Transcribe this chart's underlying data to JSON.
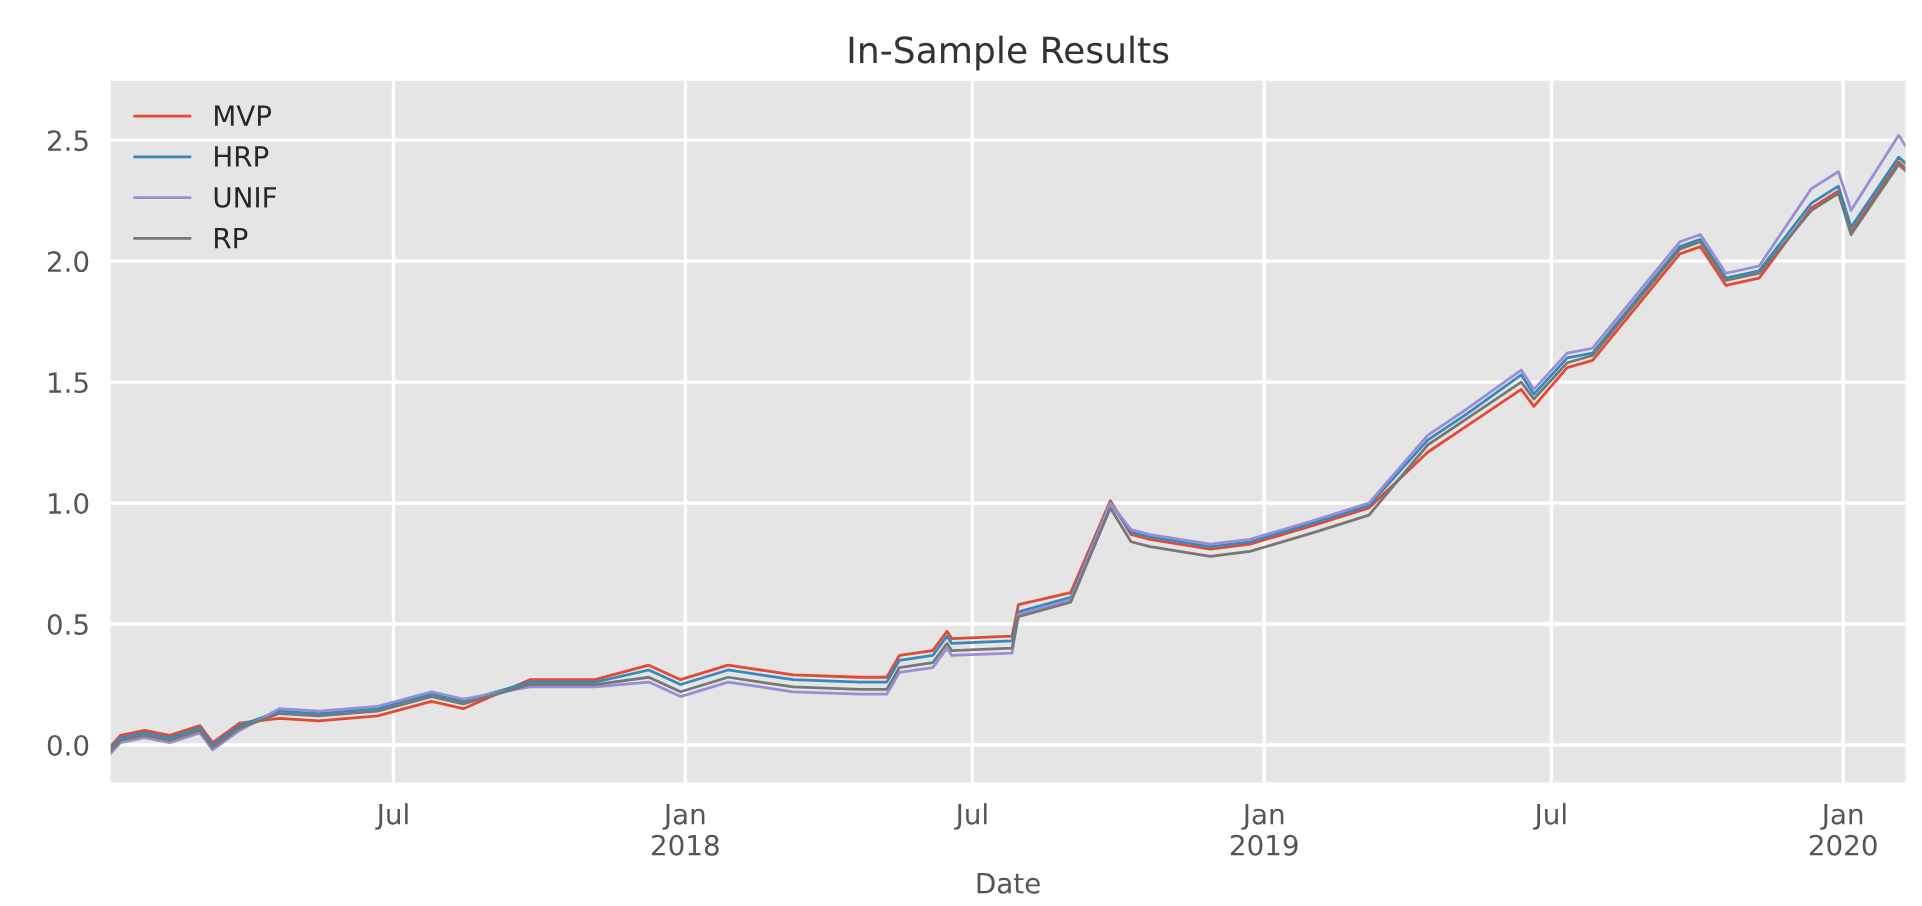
{
  "chart_data": {
    "type": "line",
    "title": "In-Sample Results",
    "xlabel": "Date",
    "x": [
      "2017-01-03",
      "2017-01-10",
      "2017-01-25",
      "2017-02-10",
      "2017-03-01",
      "2017-03-09",
      "2017-03-26",
      "2017-04-20",
      "2017-05-15",
      "2017-06-21",
      "2017-07-25",
      "2017-08-14",
      "2017-09-25",
      "2017-11-05",
      "2017-12-09",
      "2017-12-29",
      "2018-01-28",
      "2018-03-10",
      "2018-04-21",
      "2018-05-08",
      "2018-05-16",
      "2018-06-06",
      "2018-06-15",
      "2018-06-18",
      "2018-07-26",
      "2018-07-30",
      "2018-09-01",
      "2018-09-26",
      "2018-10-09",
      "2018-10-21",
      "2018-11-28",
      "2018-12-23",
      "2019-02-02",
      "2019-03-08",
      "2019-04-14",
      "2019-05-09",
      "2019-06-12",
      "2019-06-20",
      "2019-07-11",
      "2019-07-27",
      "2019-09-20",
      "2019-10-03",
      "2019-10-19",
      "2019-11-09",
      "2019-12-12",
      "2019-12-29",
      "2020-01-06",
      "2020-02-05",
      "2020-02-10"
    ],
    "series": [
      {
        "name": "MVP",
        "color": "#e24a33",
        "values": [
          -0.01,
          0.04,
          0.06,
          0.04,
          0.08,
          0.01,
          0.09,
          0.11,
          0.1,
          0.12,
          0.18,
          0.15,
          0.27,
          0.27,
          0.33,
          0.27,
          0.33,
          0.29,
          0.28,
          0.28,
          0.37,
          0.39,
          0.47,
          0.44,
          0.45,
          0.58,
          0.63,
          1.01,
          0.87,
          0.85,
          0.81,
          0.83,
          0.91,
          0.98,
          1.21,
          1.32,
          1.47,
          1.4,
          1.56,
          1.59,
          2.03,
          2.06,
          1.9,
          1.93,
          2.22,
          2.29,
          2.12,
          2.41,
          2.38
        ]
      },
      {
        "name": "HRP",
        "color": "#348abd",
        "values": [
          -0.02,
          0.03,
          0.05,
          0.03,
          0.07,
          0.0,
          0.08,
          0.14,
          0.13,
          0.15,
          0.21,
          0.18,
          0.26,
          0.26,
          0.31,
          0.25,
          0.31,
          0.27,
          0.26,
          0.26,
          0.35,
          0.37,
          0.45,
          0.42,
          0.43,
          0.55,
          0.61,
          1.0,
          0.88,
          0.86,
          0.82,
          0.84,
          0.92,
          0.99,
          1.26,
          1.37,
          1.53,
          1.45,
          1.6,
          1.62,
          2.06,
          2.09,
          1.93,
          1.96,
          2.24,
          2.31,
          2.14,
          2.43,
          2.4
        ]
      },
      {
        "name": "UNIF",
        "color": "#988ed5",
        "values": [
          -0.04,
          0.01,
          0.03,
          0.01,
          0.05,
          -0.02,
          0.06,
          0.15,
          0.14,
          0.16,
          0.22,
          0.19,
          0.24,
          0.24,
          0.26,
          0.2,
          0.26,
          0.22,
          0.21,
          0.21,
          0.3,
          0.32,
          0.4,
          0.37,
          0.38,
          0.54,
          0.6,
          1.0,
          0.89,
          0.87,
          0.83,
          0.85,
          0.93,
          1.0,
          1.28,
          1.39,
          1.55,
          1.47,
          1.62,
          1.64,
          2.08,
          2.11,
          1.95,
          1.98,
          2.3,
          2.37,
          2.21,
          2.52,
          2.47
        ]
      },
      {
        "name": "RP",
        "color": "#777777",
        "values": [
          -0.03,
          0.02,
          0.04,
          0.02,
          0.06,
          -0.01,
          0.07,
          0.13,
          0.12,
          0.14,
          0.2,
          0.17,
          0.25,
          0.25,
          0.28,
          0.22,
          0.28,
          0.24,
          0.23,
          0.23,
          0.32,
          0.34,
          0.42,
          0.39,
          0.4,
          0.53,
          0.59,
          0.98,
          0.84,
          0.82,
          0.78,
          0.8,
          0.88,
          0.95,
          1.24,
          1.35,
          1.5,
          1.43,
          1.58,
          1.61,
          2.05,
          2.08,
          1.92,
          1.95,
          2.21,
          2.28,
          2.11,
          2.4,
          2.37
        ]
      }
    ],
    "xlim": [
      "2017-01-03",
      "2020-02-10"
    ],
    "xticks": [
      {
        "value": "2017-07-01",
        "label": "Jul"
      },
      {
        "value": "2018-01-01",
        "label": "Jan\n2018"
      },
      {
        "value": "2018-07-01",
        "label": "Jul"
      },
      {
        "value": "2019-01-01",
        "label": "Jan\n2019"
      },
      {
        "value": "2019-07-01",
        "label": "Jul"
      },
      {
        "value": "2020-01-01",
        "label": "Jan\n2020"
      }
    ],
    "ylim": [
      -0.16,
      2.75
    ],
    "yticks": [
      {
        "value": 0,
        "label": "0.0"
      },
      {
        "value": 0.5,
        "label": "0.5"
      },
      {
        "value": 1,
        "label": "1.0"
      },
      {
        "value": 1.5,
        "label": "1.5"
      },
      {
        "value": 2,
        "label": "2.0"
      },
      {
        "value": 2.5,
        "label": "2.5"
      }
    ],
    "grid": true,
    "legend": "top left",
    "line_style": "solid",
    "marker": "none"
  }
}
